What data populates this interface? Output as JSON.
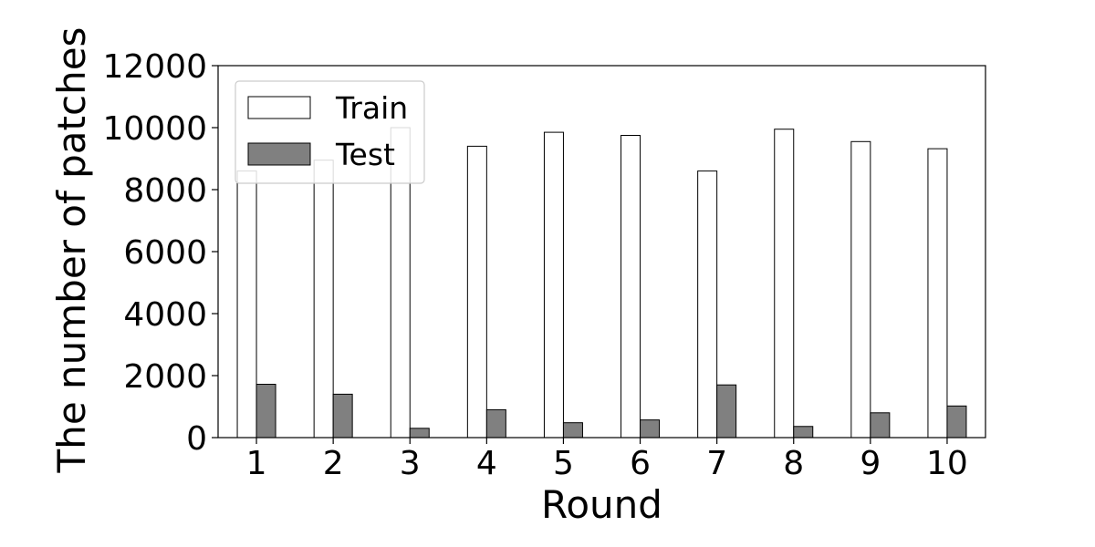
{
  "chart_data": {
    "type": "bar",
    "title": "",
    "xlabel": "Round",
    "ylabel": "The number of patches",
    "categories": [
      "1",
      "2",
      "3",
      "4",
      "5",
      "6",
      "7",
      "8",
      "9",
      "10"
    ],
    "series": [
      {
        "name": "Train",
        "values": [
          8600,
          8950,
          10000,
          9400,
          9850,
          9750,
          8600,
          9950,
          9550,
          9320
        ],
        "color": "#ffffff",
        "edge_color": "#000000"
      },
      {
        "name": "Test",
        "values": [
          1720,
          1400,
          300,
          900,
          480,
          570,
          1700,
          360,
          800,
          1020
        ],
        "color": "#808080",
        "edge_color": "#000000"
      }
    ],
    "ylim": [
      0,
      12000
    ],
    "yticks": [
      0,
      2000,
      4000,
      6000,
      8000,
      10000,
      12000
    ],
    "grid": false,
    "legend_position": "upper-left"
  }
}
